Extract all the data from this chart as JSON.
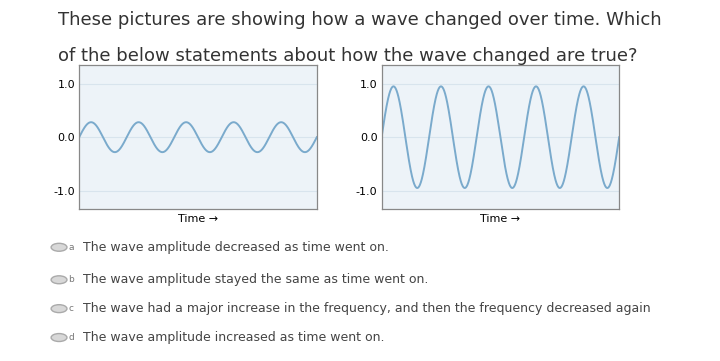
{
  "title_line1": "These pictures are showing how a wave changed over time. Which",
  "title_line2": "of the below statements about how the wave changed are true?",
  "title_fontsize": 13,
  "wave1_amplitude": 0.28,
  "wave1_frequency": 5,
  "wave2_amplitude": 0.95,
  "wave2_frequency": 5,
  "xlabel": "Time →",
  "ylim": [
    -1.35,
    1.35
  ],
  "wave_color": "#7aaacc",
  "wave_linewidth": 1.4,
  "grid_color": "#d8e4ed",
  "bg_color": "#ffffff",
  "plot_bg_color": "#edf3f8",
  "spine_color": "#888888",
  "options": [
    {
      "label": "a",
      "text": "The wave amplitude decreased as time went on."
    },
    {
      "label": "b",
      "text": "The wave amplitude stayed the same as time went on."
    },
    {
      "label": "c",
      "text": "The wave had a major increase in the frequency, and then the frequency decreased again"
    },
    {
      "label": "d",
      "text": "The wave amplitude increased as time went on."
    }
  ],
  "option_fontsize": 9,
  "tick_fontsize": 8
}
